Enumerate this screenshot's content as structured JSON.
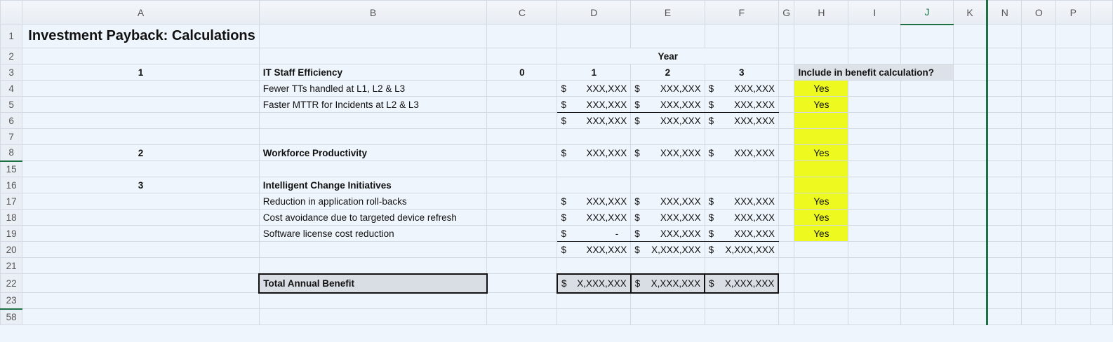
{
  "columns": [
    "A",
    "B",
    "C",
    "D",
    "E",
    "F",
    "G",
    "H",
    "I",
    "J",
    "K",
    "N",
    "O",
    "P"
  ],
  "selected_column": "J",
  "colors": {
    "yellow": "#eefa1f",
    "accent": "#1d7145",
    "background": "#eff5fc"
  },
  "rows": [
    {
      "num": "1",
      "cells": {
        "A": "Investment Payback: Calculations"
      }
    },
    {
      "num": "2",
      "cells": {
        "D": "Year"
      }
    },
    {
      "num": "3",
      "cells": {
        "A": "1",
        "B": "IT Staff Efficiency",
        "C": "0",
        "D": "1",
        "E": "2",
        "F": "3",
        "H": "Include in benefit calculation?"
      }
    },
    {
      "num": "4",
      "cells": {
        "B": "Fewer TTs handled at L1, L2 & L3",
        "D": {
          "cur": "$",
          "val": "XXX,XXX"
        },
        "E": {
          "cur": "$",
          "val": "XXX,XXX"
        },
        "F": {
          "cur": "$",
          "val": "XXX,XXX"
        },
        "H": "Yes"
      }
    },
    {
      "num": "5",
      "cells": {
        "B": "Faster MTTR for Incidents at L2 & L3",
        "D": {
          "cur": "$",
          "val": "XXX,XXX"
        },
        "E": {
          "cur": "$",
          "val": "XXX,XXX"
        },
        "F": {
          "cur": "$",
          "val": "XXX,XXX"
        },
        "H": "Yes"
      }
    },
    {
      "num": "6",
      "cells": {
        "D": {
          "cur": "$",
          "val": "XXX,XXX"
        },
        "E": {
          "cur": "$",
          "val": "XXX,XXX"
        },
        "F": {
          "cur": "$",
          "val": "XXX,XXX"
        }
      }
    },
    {
      "num": "7",
      "cells": {}
    },
    {
      "num": "8",
      "cells": {
        "A": "2",
        "B": "Workforce Productivity",
        "D": {
          "cur": "$",
          "val": "XXX,XXX"
        },
        "E": {
          "cur": "$",
          "val": "XXX,XXX"
        },
        "F": {
          "cur": "$",
          "val": "XXX,XXX"
        },
        "H": "Yes"
      }
    },
    {
      "num": "15",
      "cells": {}
    },
    {
      "num": "16",
      "cells": {
        "A": "3",
        "B": "Intelligent Change Initiatives"
      }
    },
    {
      "num": "17",
      "cells": {
        "B": "Reduction in application roll-backs",
        "D": {
          "cur": "$",
          "val": "XXX,XXX"
        },
        "E": {
          "cur": "$",
          "val": "XXX,XXX"
        },
        "F": {
          "cur": "$",
          "val": "XXX,XXX"
        },
        "H": "Yes"
      }
    },
    {
      "num": "18",
      "cells": {
        "B": "Cost avoidance due to targeted device refresh",
        "D": {
          "cur": "$",
          "val": "XXX,XXX"
        },
        "E": {
          "cur": "$",
          "val": "XXX,XXX"
        },
        "F": {
          "cur": "$",
          "val": "XXX,XXX"
        },
        "H": "Yes"
      }
    },
    {
      "num": "19",
      "cells": {
        "B": "Software license cost reduction",
        "D": {
          "cur": "$",
          "val": "-"
        },
        "E": {
          "cur": "$",
          "val": "XXX,XXX"
        },
        "F": {
          "cur": "$",
          "val": "XXX,XXX"
        },
        "H": "Yes"
      }
    },
    {
      "num": "20",
      "cells": {
        "D": {
          "cur": "$",
          "val": "XXX,XXX"
        },
        "E": {
          "cur": "$",
          "val": "X,XXX,XXX"
        },
        "F": {
          "cur": "$",
          "val": "X,XXX,XXX"
        }
      }
    },
    {
      "num": "21",
      "cells": {}
    },
    {
      "num": "22",
      "cells": {
        "B": "Total Annual Benefit",
        "D": {
          "cur": "$",
          "val": "X,XXX,XXX"
        },
        "E": {
          "cur": "$",
          "val": "X,XXX,XXX"
        },
        "F": {
          "cur": "$",
          "val": "X,XXX,XXX"
        }
      }
    },
    {
      "num": "23",
      "cells": {}
    },
    {
      "num": "58",
      "cells": {}
    }
  ]
}
